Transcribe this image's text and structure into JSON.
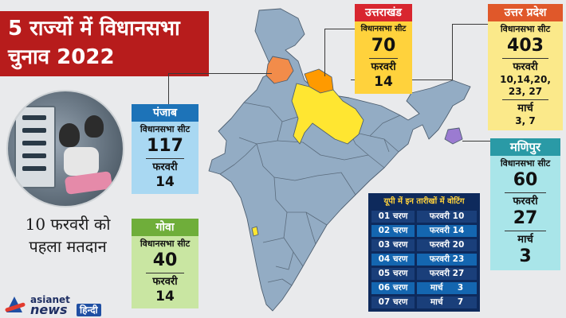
{
  "title": {
    "line1": "5 राज्यों में विधानसभा",
    "line2": "चुनाव 2022"
  },
  "first_vote": {
    "line1": "10 फरवरी को",
    "line2": "पहला मतदान"
  },
  "punjab": {
    "name": "पंजाब",
    "seat_label": "विधानसभा सीट",
    "seats": "117",
    "month": "फरवरी",
    "dates": "14"
  },
  "goa": {
    "name": "गोवा",
    "seat_label": "विधानसभा सीट",
    "seats": "40",
    "month": "फरवरी",
    "dates": "14"
  },
  "uttarakhand": {
    "name": "उत्तराखंड",
    "seat_label": "विधानसभा सीट",
    "seats": "70",
    "month": "फरवरी",
    "dates": "14"
  },
  "up": {
    "name": "उत्तर प्रदेश",
    "seat_label": "विधानसभा सीट",
    "seats": "403",
    "month1": "फरवरी",
    "dates1a": "10,14,20,",
    "dates1b": "23, 27",
    "month2": "मार्च",
    "dates2": "3, 7"
  },
  "manipur": {
    "name": "मणिपुर",
    "seat_label": "विधानसभा सीट",
    "seats": "60",
    "month1": "फरवरी",
    "dates1": "27",
    "month2": "मार्च",
    "dates2": "3"
  },
  "up_schedule": {
    "heading": "यूपी में इन तारीखों में वोटिंग",
    "rows": [
      {
        "phase": "01 चरण",
        "date": "फरवरी 10"
      },
      {
        "phase": "02 चरण",
        "date": "फरवरी 14"
      },
      {
        "phase": "03 चरण",
        "date": "फरवरी 20"
      },
      {
        "phase": "04 चरण",
        "date": "फरवरी 23"
      },
      {
        "phase": "05 चरण",
        "date": "फरवरी 27"
      },
      {
        "phase": "06 चरण",
        "date": "मार्च     3"
      },
      {
        "phase": "07 चरण",
        "date": "मार्च     7"
      }
    ]
  },
  "logo": {
    "brand": "asianet",
    "news": "news",
    "hindi": "हिन्दी"
  },
  "colors": {
    "title_bg": "#b71c1c",
    "map_base": "#93acc4",
    "punjab_fill": "#f28c4a",
    "uttarakhand_fill": "#ff9a00",
    "up_fill": "#ffe631",
    "manipur_fill": "#9b7bd1",
    "goa_fill": "#ffe631",
    "table_bg": "#0e2a5c",
    "table_row_blue": "#1466b0"
  }
}
